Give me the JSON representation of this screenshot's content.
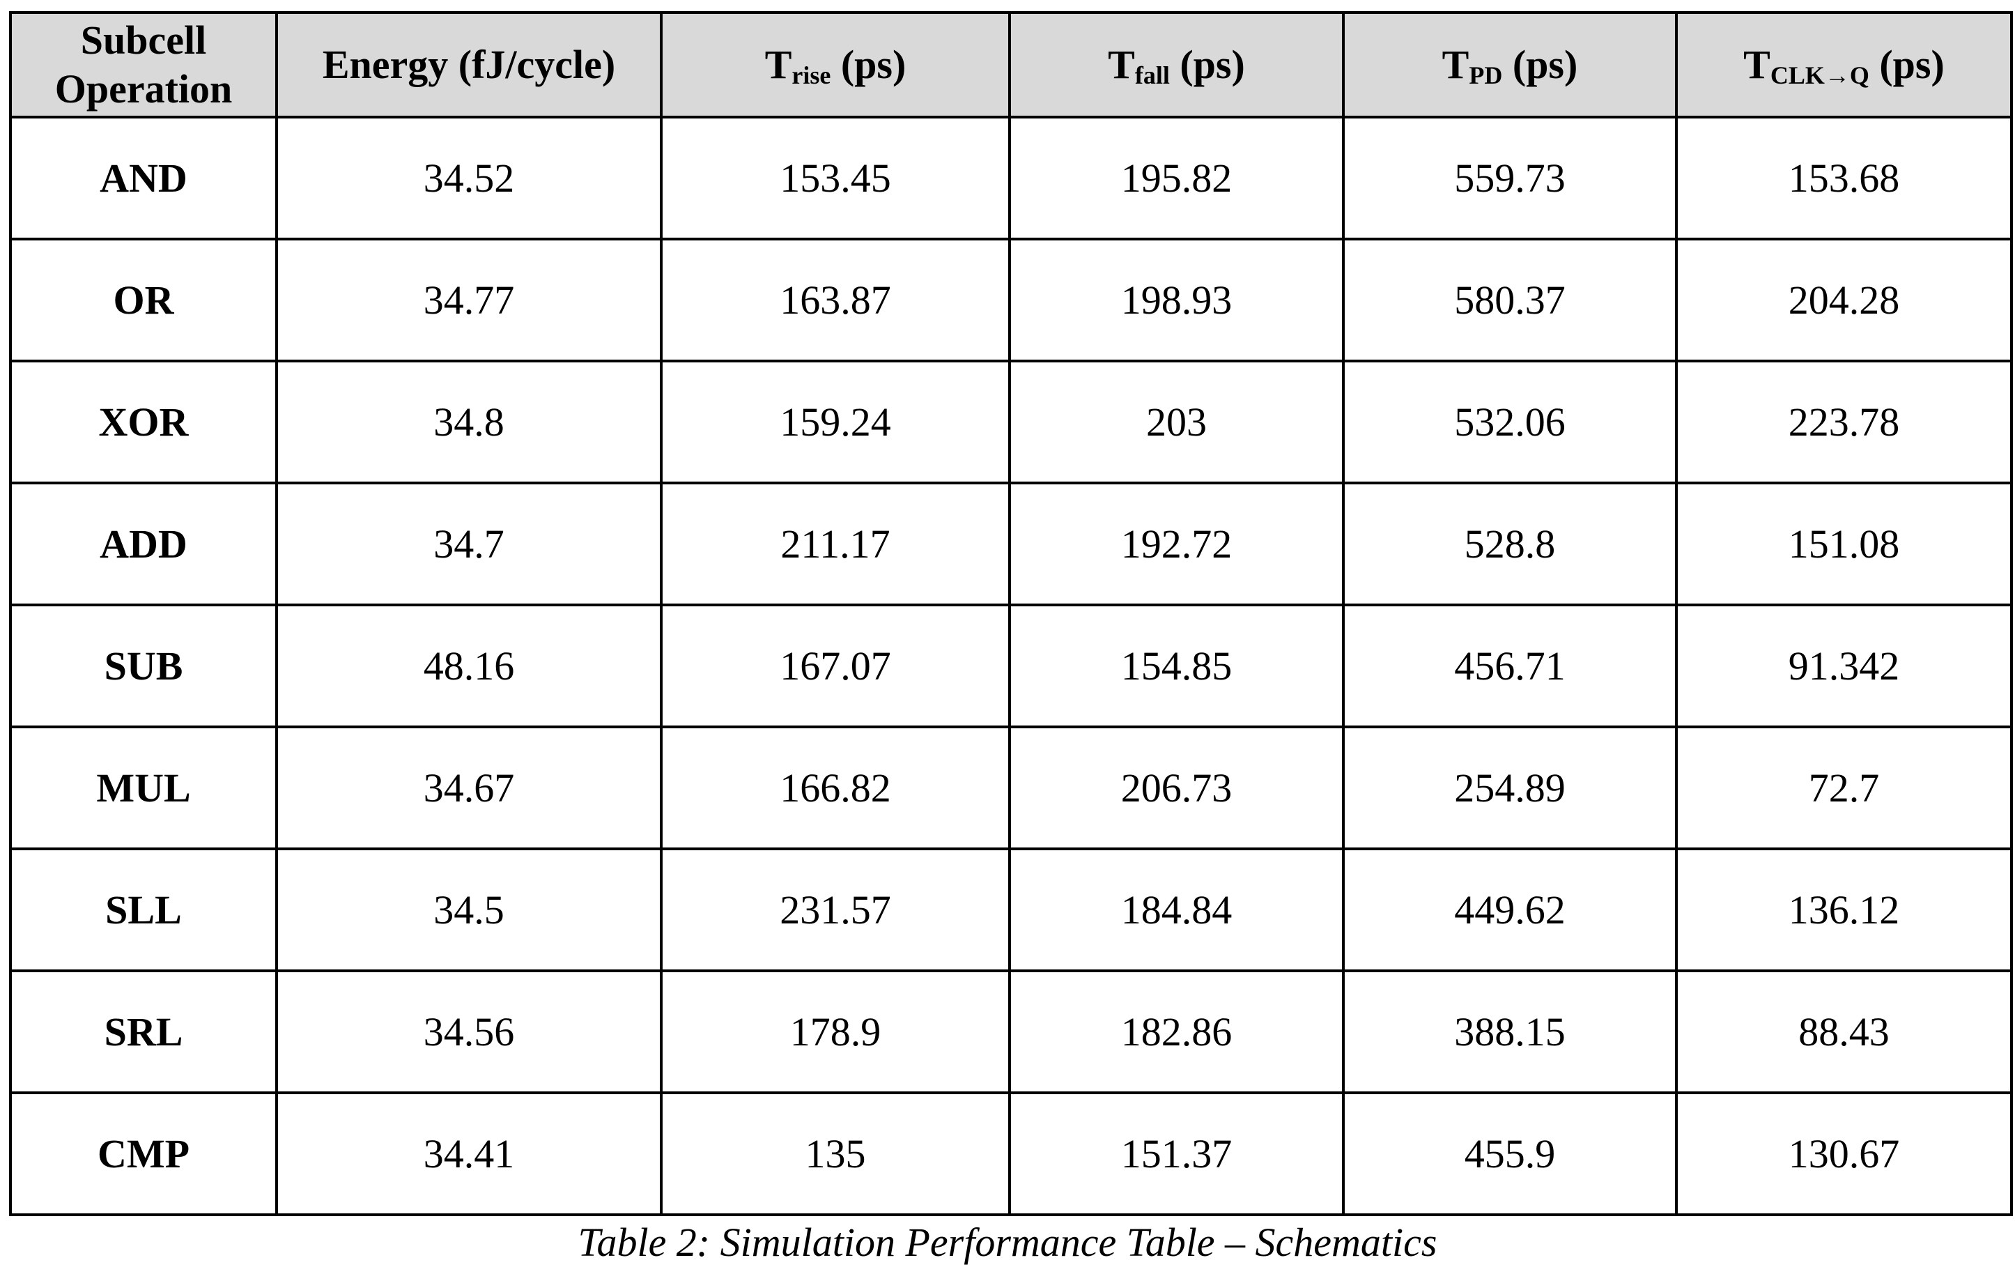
{
  "table": {
    "header": [
      {
        "lines": [
          "Subcell",
          "Operation"
        ]
      },
      {
        "text": "Energy (fJ/cycle)"
      },
      {
        "main": "T",
        "sub": "rise",
        "suffix": " (ps)"
      },
      {
        "main": "T",
        "sub": "fall",
        "suffix": " (ps)"
      },
      {
        "main": "T",
        "sub": "PD",
        "suffix": " (ps)"
      },
      {
        "main": "T",
        "sub": "CLK→Q",
        "suffix": " (ps)"
      }
    ],
    "rows": [
      [
        "AND",
        "34.52",
        "153.45",
        "195.82",
        "559.73",
        "153.68"
      ],
      [
        "OR",
        "34.77",
        "163.87",
        "198.93",
        "580.37",
        "204.28"
      ],
      [
        "XOR",
        "34.8",
        "159.24",
        "203",
        "532.06",
        "223.78"
      ],
      [
        "ADD",
        "34.7",
        "211.17",
        "192.72",
        "528.8",
        "151.08"
      ],
      [
        "SUB",
        "48.16",
        "167.07",
        "154.85",
        "456.71",
        "91.342"
      ],
      [
        "MUL",
        "34.67",
        "166.82",
        "206.73",
        "254.89",
        "72.7"
      ],
      [
        "SLL",
        "34.5",
        "231.57",
        "184.84",
        "449.62",
        "136.12"
      ],
      [
        "SRL",
        "34.56",
        "178.9",
        "182.86",
        "388.15",
        "88.43"
      ],
      [
        "CMP",
        "34.41",
        "135",
        "151.37",
        "455.9",
        "130.67"
      ]
    ]
  },
  "caption": "Table 2: Simulation Performance Table – Schematics",
  "colors": {
    "header_background": "#d9d9d9",
    "border": "#000000"
  }
}
